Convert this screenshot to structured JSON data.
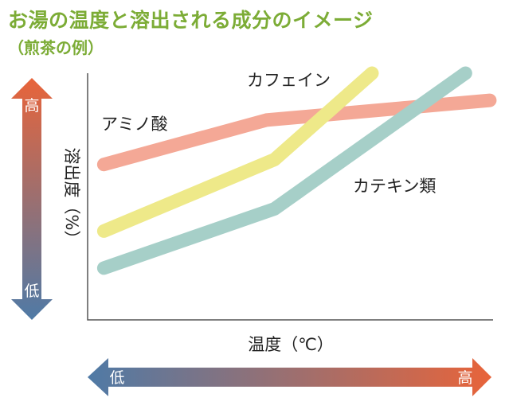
{
  "title": "お湯の温度と溶出される成分のイメージ",
  "subtitle": "（煎茶の例）",
  "chart_data": {
    "type": "line",
    "title": "お湯の温度と溶出される成分のイメージ",
    "subtitle": "（煎茶の例）",
    "xlabel": "温度（℃）",
    "ylabel": "溶出度（%）",
    "x_scale_labels": {
      "low": "低",
      "high": "高"
    },
    "y_scale_labels": {
      "low": "低",
      "high": "高"
    },
    "xlim": [
      0,
      10
    ],
    "ylim": [
      0,
      10
    ],
    "grid": false,
    "series": [
      {
        "name": "アミノ酸",
        "color": "#f4a896",
        "x": [
          0.4,
          4.4,
          9.9
        ],
        "y": [
          6.3,
          8.1,
          8.9
        ]
      },
      {
        "name": "カフェイン",
        "color": "#eee989",
        "x": [
          0.4,
          4.6,
          7.0
        ],
        "y": [
          3.6,
          6.5,
          10.0
        ]
      },
      {
        "name": "カテキン類",
        "color": "#a6cfc8",
        "x": [
          0.4,
          4.6,
          9.3
        ],
        "y": [
          2.1,
          4.5,
          10.0
        ]
      }
    ]
  },
  "colors": {
    "title": "#7cac36",
    "arrow_low": "#4f7aa6",
    "arrow_high": "#e8643a"
  }
}
